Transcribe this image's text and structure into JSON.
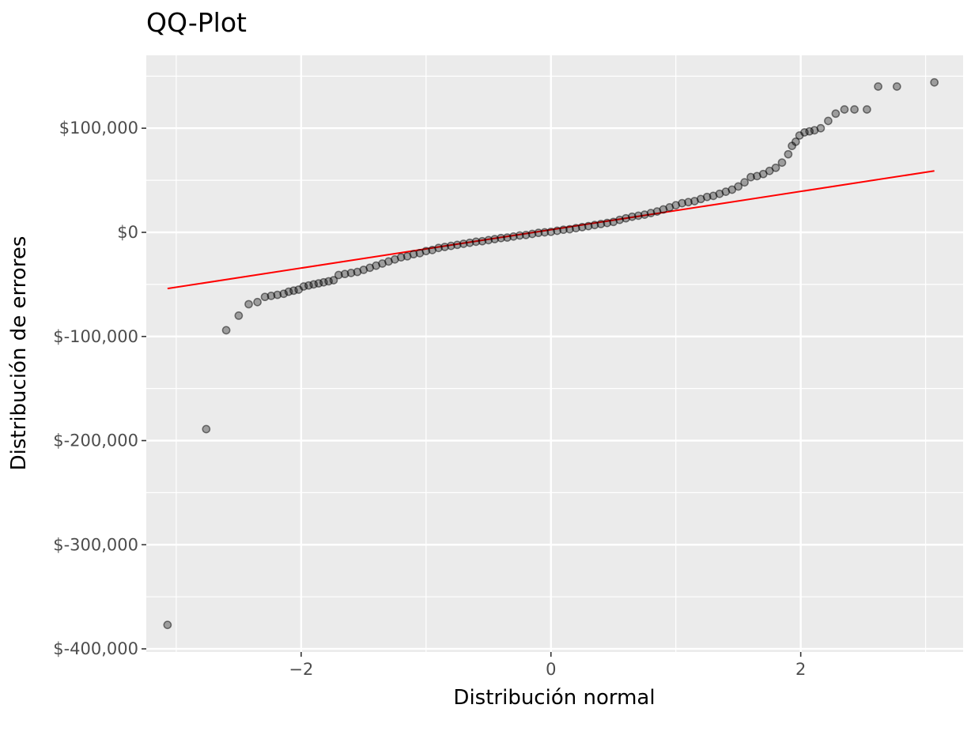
{
  "chart_data": {
    "type": "scatter",
    "title": "QQ-Plot",
    "xlabel": "Distribución normal",
    "ylabel": "Distribución de errores",
    "xlim": [
      -3.24,
      3.3
    ],
    "ylim": [
      -403000,
      170000
    ],
    "x_ticks": [
      -2,
      0,
      2
    ],
    "x_tick_labels": [
      "−2",
      "0",
      "2"
    ],
    "y_ticks": [
      100000,
      0,
      -100000,
      -200000,
      -300000,
      -400000
    ],
    "y_tick_labels": [
      "$100,000",
      "$0",
      "$-100,000",
      "$-200,000",
      "$-300,000",
      "$-400,000"
    ],
    "grid": true,
    "legend": "none",
    "colors": {
      "panel": "#ebebeb",
      "grid": "#ffffff",
      "points": "#000000",
      "reference_line": "#ff0000"
    },
    "reference_line": {
      "x": [
        -3.07,
        3.07
      ],
      "y": [
        -54000,
        59000
      ]
    },
    "series": [
      {
        "points": [
          [
            -3.07,
            -377000
          ],
          [
            -2.76,
            -189000
          ],
          [
            -2.6,
            -94000
          ],
          [
            -2.5,
            -80000
          ],
          [
            -2.42,
            -69000
          ],
          [
            -2.35,
            -67000
          ],
          [
            -2.29,
            -62000
          ],
          [
            -2.24,
            -61000
          ],
          [
            -2.19,
            -60000
          ],
          [
            -2.14,
            -59000
          ],
          [
            -2.1,
            -57000
          ],
          [
            -2.06,
            -56000
          ],
          [
            -2.02,
            -55000
          ],
          [
            -1.98,
            -52000
          ],
          [
            -1.94,
            -51000
          ],
          [
            -1.9,
            -50000
          ],
          [
            -1.86,
            -49000
          ],
          [
            -1.82,
            -48000
          ],
          [
            -1.78,
            -47000
          ],
          [
            -1.74,
            -46000
          ],
          [
            -1.7,
            -41000
          ],
          [
            -1.65,
            -40000
          ],
          [
            -1.6,
            -39000
          ],
          [
            -1.55,
            -38000
          ],
          [
            -1.5,
            -36000
          ],
          [
            -1.45,
            -34000
          ],
          [
            -1.4,
            -32000
          ],
          [
            -1.35,
            -30000
          ],
          [
            -1.3,
            -28000
          ],
          [
            -1.25,
            -26000
          ],
          [
            -1.2,
            -24000
          ],
          [
            -1.15,
            -23000
          ],
          [
            -1.1,
            -21000
          ],
          [
            -1.05,
            -20000
          ],
          [
            -1.0,
            -18000
          ],
          [
            -0.95,
            -17000
          ],
          [
            -0.9,
            -15000
          ],
          [
            -0.85,
            -14000
          ],
          [
            -0.8,
            -13000
          ],
          [
            -0.75,
            -12000
          ],
          [
            -0.7,
            -11000
          ],
          [
            -0.65,
            -10000
          ],
          [
            -0.6,
            -9000
          ],
          [
            -0.55,
            -8500
          ],
          [
            -0.5,
            -7500
          ],
          [
            -0.45,
            -6500
          ],
          [
            -0.4,
            -5500
          ],
          [
            -0.35,
            -5000
          ],
          [
            -0.3,
            -4000
          ],
          [
            -0.25,
            -3000
          ],
          [
            -0.2,
            -2500
          ],
          [
            -0.15,
            -1500
          ],
          [
            -0.1,
            -500
          ],
          [
            -0.05,
            0
          ],
          [
            0.0,
            500
          ],
          [
            0.05,
            1500
          ],
          [
            0.1,
            2500
          ],
          [
            0.15,
            3000
          ],
          [
            0.2,
            4000
          ],
          [
            0.25,
            5000
          ],
          [
            0.3,
            6000
          ],
          [
            0.35,
            7000
          ],
          [
            0.4,
            8000
          ],
          [
            0.45,
            9000
          ],
          [
            0.5,
            10000
          ],
          [
            0.55,
            12000
          ],
          [
            0.6,
            13500
          ],
          [
            0.65,
            15000
          ],
          [
            0.7,
            16000
          ],
          [
            0.75,
            17000
          ],
          [
            0.8,
            18500
          ],
          [
            0.85,
            20000
          ],
          [
            0.9,
            22000
          ],
          [
            0.95,
            24000
          ],
          [
            1.0,
            26000
          ],
          [
            1.05,
            28000
          ],
          [
            1.1,
            29000
          ],
          [
            1.15,
            30000
          ],
          [
            1.2,
            32000
          ],
          [
            1.25,
            34000
          ],
          [
            1.3,
            35000
          ],
          [
            1.35,
            37000
          ],
          [
            1.4,
            39000
          ],
          [
            1.45,
            41000
          ],
          [
            1.5,
            44000
          ],
          [
            1.55,
            48000
          ],
          [
            1.6,
            53000
          ],
          [
            1.65,
            54000
          ],
          [
            1.7,
            56000
          ],
          [
            1.75,
            59000
          ],
          [
            1.8,
            62000
          ],
          [
            1.85,
            67000
          ],
          [
            1.9,
            75000
          ],
          [
            1.93,
            83000
          ],
          [
            1.96,
            87000
          ],
          [
            1.99,
            93000
          ],
          [
            2.03,
            96000
          ],
          [
            2.07,
            97000
          ],
          [
            2.11,
            98000
          ],
          [
            2.16,
            100000
          ],
          [
            2.22,
            107000
          ],
          [
            2.28,
            114000
          ],
          [
            2.35,
            118000
          ],
          [
            2.43,
            118000
          ],
          [
            2.53,
            118000
          ],
          [
            2.62,
            140000
          ],
          [
            2.77,
            140000
          ],
          [
            3.07,
            144000
          ]
        ]
      }
    ]
  }
}
